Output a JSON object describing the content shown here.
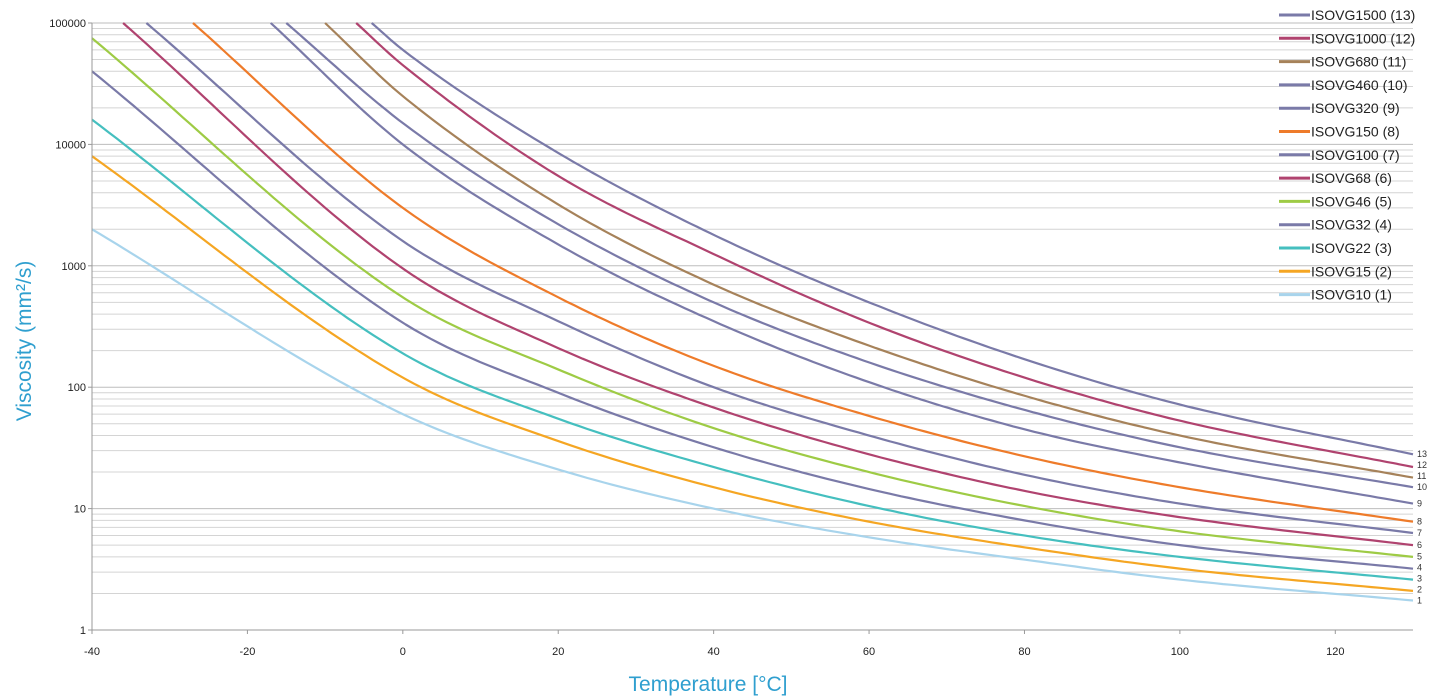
{
  "chart_data": {
    "type": "line",
    "xlabel": "Temperature [°C]",
    "ylabel": "Viscosity (mm²/s)",
    "xlim": [
      -40,
      130
    ],
    "ylim": [
      1,
      100000
    ],
    "yscale": "log",
    "x_ticks": [
      -40,
      -20,
      0,
      20,
      40,
      60,
      80,
      100,
      120
    ],
    "y_ticks": [
      1,
      10,
      100,
      1000,
      10000,
      100000
    ],
    "grid": "horizontal minor log gridlines",
    "legend_position": "top-right",
    "series": [
      {
        "name": "ISOVG1500 (13)",
        "end_label": "13",
        "color": "#7a7aa8",
        "points": [
          [
            -4,
            100000
          ],
          [
            0,
            60000
          ],
          [
            20,
            8500
          ],
          [
            40,
            1800
          ],
          [
            60,
            500
          ],
          [
            80,
            170
          ],
          [
            100,
            72
          ],
          [
            130,
            28
          ]
        ]
      },
      {
        "name": "ISOVG1000 (12)",
        "end_label": "12",
        "color": "#b0436f",
        "points": [
          [
            -6,
            100000
          ],
          [
            0,
            45000
          ],
          [
            20,
            5500
          ],
          [
            40,
            1250
          ],
          [
            60,
            340
          ],
          [
            80,
            120
          ],
          [
            100,
            53
          ],
          [
            130,
            22
          ]
        ]
      },
      {
        "name": "ISOVG680 (11)",
        "end_label": "11",
        "color": "#a6825a",
        "points": [
          [
            -10,
            100000
          ],
          [
            0,
            25000
          ],
          [
            20,
            3200
          ],
          [
            40,
            700
          ],
          [
            60,
            220
          ],
          [
            80,
            85
          ],
          [
            100,
            40
          ],
          [
            130,
            18
          ]
        ]
      },
      {
        "name": "ISOVG460 (10)",
        "end_label": "10",
        "color": "#7a7aa8",
        "points": [
          [
            -15,
            100000
          ],
          [
            0,
            15000
          ],
          [
            20,
            2200
          ],
          [
            40,
            500
          ],
          [
            60,
            160
          ],
          [
            80,
            65
          ],
          [
            100,
            32
          ],
          [
            130,
            15
          ]
        ]
      },
      {
        "name": "ISOVG320 (9)",
        "end_label": "9",
        "color": "#7a7aa8",
        "points": [
          [
            -17,
            100000
          ],
          [
            0,
            10000
          ],
          [
            20,
            1500
          ],
          [
            40,
            350
          ],
          [
            60,
            110
          ],
          [
            80,
            45
          ],
          [
            100,
            24
          ],
          [
            130,
            11
          ]
        ]
      },
      {
        "name": "ISOVG150 (8)",
        "end_label": "8",
        "color": "#ee7b2a",
        "points": [
          [
            -27,
            100000
          ],
          [
            0,
            3000
          ],
          [
            20,
            550
          ],
          [
            40,
            150
          ],
          [
            60,
            58
          ],
          [
            80,
            27
          ],
          [
            100,
            15
          ],
          [
            130,
            7.8
          ]
        ]
      },
      {
        "name": "ISOVG100 (7)",
        "end_label": "7",
        "color": "#7a7aa8",
        "points": [
          [
            -33,
            100000
          ],
          [
            0,
            1600
          ],
          [
            20,
            350
          ],
          [
            40,
            100
          ],
          [
            60,
            40
          ],
          [
            80,
            19
          ],
          [
            100,
            11
          ],
          [
            130,
            6.3
          ]
        ]
      },
      {
        "name": "ISOVG68 (6)",
        "end_label": "6",
        "color": "#b0436f",
        "points": [
          [
            -36,
            100000
          ],
          [
            0,
            950
          ],
          [
            20,
            210
          ],
          [
            40,
            68
          ],
          [
            60,
            28
          ],
          [
            80,
            14
          ],
          [
            100,
            8.5
          ],
          [
            130,
            5.0
          ]
        ]
      },
      {
        "name": "ISOVG46 (5)",
        "end_label": "5",
        "color": "#9ecb45",
        "points": [
          [
            -40,
            75000
          ],
          [
            0,
            550
          ],
          [
            20,
            140
          ],
          [
            40,
            46
          ],
          [
            60,
            20
          ],
          [
            80,
            10.5
          ],
          [
            100,
            6.5
          ],
          [
            130,
            4.0
          ]
        ]
      },
      {
        "name": "ISOVG32 (4)",
        "end_label": "4",
        "color": "#7a7aa8",
        "points": [
          [
            -40,
            40000
          ],
          [
            0,
            340
          ],
          [
            20,
            90
          ],
          [
            40,
            32
          ],
          [
            60,
            14.5
          ],
          [
            80,
            8.0
          ],
          [
            100,
            5.0
          ],
          [
            130,
            3.2
          ]
        ]
      },
      {
        "name": "ISOVG22 (3)",
        "end_label": "3",
        "color": "#45bfbf",
        "points": [
          [
            -40,
            16000
          ],
          [
            0,
            190
          ],
          [
            20,
            55
          ],
          [
            40,
            22
          ],
          [
            60,
            10.5
          ],
          [
            80,
            6.0
          ],
          [
            100,
            4.0
          ],
          [
            130,
            2.6
          ]
        ]
      },
      {
        "name": "ISOVG15 (2)",
        "end_label": "2",
        "color": "#f5a623",
        "points": [
          [
            -40,
            8000
          ],
          [
            0,
            120
          ],
          [
            20,
            36
          ],
          [
            40,
            15
          ],
          [
            60,
            7.8
          ],
          [
            80,
            4.8
          ],
          [
            100,
            3.2
          ],
          [
            130,
            2.1
          ]
        ]
      },
      {
        "name": "ISOVG10 (1)",
        "end_label": "1",
        "color": "#a8d4ec",
        "points": [
          [
            -40,
            2000
          ],
          [
            0,
            60
          ],
          [
            20,
            21
          ],
          [
            40,
            10
          ],
          [
            60,
            5.8
          ],
          [
            80,
            3.8
          ],
          [
            100,
            2.6
          ],
          [
            130,
            1.75
          ]
        ]
      }
    ]
  }
}
